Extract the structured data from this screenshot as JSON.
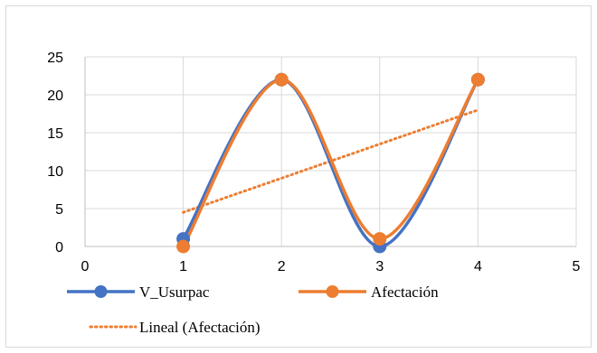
{
  "chart_data": {
    "type": "line",
    "x": [
      1,
      2,
      3,
      4
    ],
    "series": [
      {
        "name": "V_Usurpac",
        "values": [
          1,
          22,
          0,
          22
        ],
        "color": "#4472C4",
        "smooth": true,
        "marker": "circle"
      },
      {
        "name": "Afectación",
        "values": [
          0,
          22,
          1,
          22
        ],
        "color": "#ED7D31",
        "smooth": true,
        "marker": "circle"
      }
    ],
    "trendline": {
      "name": "Lineal (Afectación)",
      "of_series": "Afectación",
      "type": "linear",
      "color": "#ED7D31",
      "style": "dotted"
    },
    "xlim": [
      0,
      5
    ],
    "ylim": [
      0,
      25
    ],
    "xticks": [
      0,
      1,
      2,
      3,
      4,
      5
    ],
    "yticks": [
      0,
      5,
      10,
      15,
      20,
      25
    ],
    "grid": true,
    "legend_placement": "bottom",
    "title": "",
    "xlabel": "",
    "ylabel": ""
  }
}
